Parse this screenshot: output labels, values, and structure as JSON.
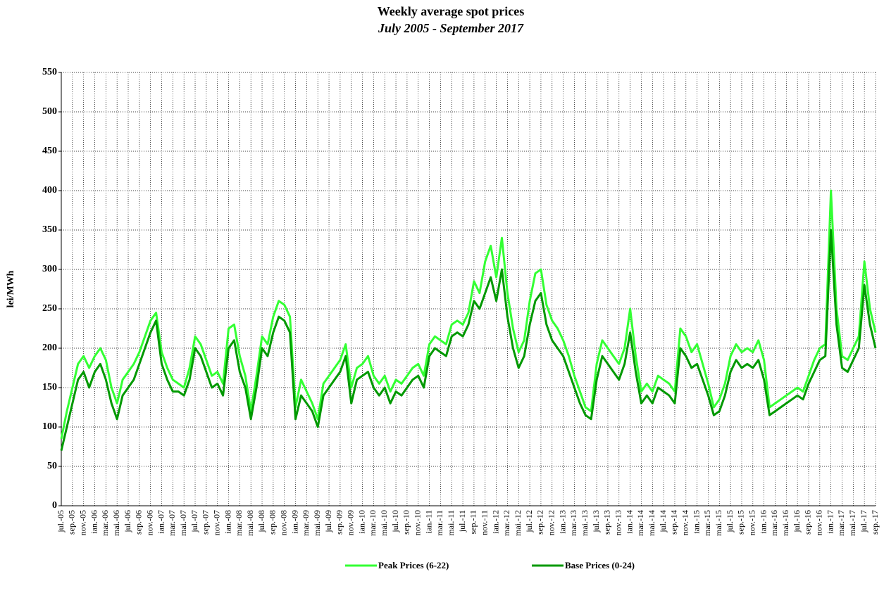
{
  "chart_data": {
    "type": "line",
    "title": "Weekly average spot prices",
    "subtitle": "July 2005 -  September 2017",
    "y_label": "lei/MWh",
    "categories": [
      "jul.-05",
      null,
      "sep.-05",
      null,
      "nov.-05",
      null,
      "ian.-06",
      null,
      "mar.-06",
      null,
      "mai.-06",
      null,
      "jul.-06",
      null,
      "sep.-06",
      null,
      "nov.-06",
      null,
      "ian.-07",
      null,
      "mar.-07",
      null,
      "mai.-07",
      null,
      "jul.-07",
      null,
      "sep.-07",
      null,
      "nov.-07",
      null,
      "ian.-08",
      null,
      "mar.-08",
      null,
      "mai.-08",
      null,
      "jul.-08",
      null,
      "sep.-08",
      null,
      "nov.-08",
      null,
      "ian.-09",
      null,
      "mar.-09",
      null,
      "mai.-09",
      null,
      "jul.-09",
      null,
      "sep.-09",
      null,
      "nov.-09",
      null,
      "ian.-10",
      null,
      "mar.-10",
      null,
      "mai.-10",
      null,
      "jul.-10",
      null,
      "sep.-10",
      null,
      "nov.-10",
      null,
      "ian.-11",
      null,
      "mar.-11",
      null,
      "mai.-11",
      null,
      "jul.-11",
      null,
      "sep.-11",
      null,
      "nov.-11",
      null,
      "ian.-12",
      null,
      "mar.-12",
      null,
      "mai.-12",
      null,
      "jul.-12",
      null,
      "sep.-12",
      null,
      "nov.-12",
      null,
      "ian.-13",
      null,
      "mar.-13",
      null,
      "mai.-13",
      null,
      "jul.-13",
      null,
      "sep.-13",
      null,
      "nov.-13",
      null,
      "ian.-14",
      null,
      "mar.-14",
      null,
      "mai.-14",
      null,
      "jul.-14",
      null,
      "sep.-14",
      null,
      "nov.-14",
      null,
      "ian.-15",
      null,
      "mar.-15",
      null,
      "mai.-15",
      null,
      "jul.-15",
      null,
      "sep.-15",
      null,
      "nov.-15",
      null,
      "ian.-16",
      null,
      "mar.-16",
      null,
      "mai.-16",
      null,
      "jul.-16",
      null,
      "sep.-16",
      null,
      "nov.-16",
      null,
      "ian.-17",
      null,
      "mar.-17",
      null,
      "mai.-17",
      null,
      "jul.-17",
      null,
      "sep.-17"
    ],
    "series": [
      {
        "name": "Peak Prices (6-22)",
        "color": "#33ff33",
        "values": [
          85,
          120,
          150,
          180,
          190,
          175,
          190,
          200,
          185,
          150,
          130,
          160,
          170,
          180,
          195,
          215,
          235,
          245,
          195,
          175,
          160,
          155,
          150,
          175,
          215,
          205,
          185,
          165,
          170,
          155,
          225,
          230,
          190,
          165,
          120,
          165,
          215,
          205,
          240,
          260,
          255,
          240,
          125,
          160,
          145,
          130,
          110,
          155,
          165,
          175,
          185,
          205,
          150,
          175,
          180,
          190,
          165,
          155,
          165,
          145,
          160,
          155,
          165,
          175,
          180,
          165,
          205,
          215,
          210,
          205,
          230,
          235,
          230,
          245,
          285,
          270,
          310,
          330,
          290,
          340,
          270,
          225,
          195,
          210,
          260,
          295,
          300,
          255,
          235,
          225,
          210,
          190,
          165,
          145,
          125,
          120,
          180,
          210,
          200,
          190,
          180,
          200,
          250,
          190,
          145,
          155,
          145,
          165,
          160,
          155,
          145,
          225,
          215,
          195,
          205,
          180,
          155,
          125,
          135,
          155,
          190,
          205,
          195,
          200,
          195,
          210,
          185,
          125,
          130,
          135,
          140,
          145,
          150,
          145,
          165,
          185,
          200,
          205,
          400,
          250,
          190,
          185,
          200,
          215,
          310,
          250,
          220
        ]
      },
      {
        "name": "Base Prices (0-24)",
        "color": "#009900",
        "values": [
          70,
          100,
          130,
          160,
          170,
          150,
          170,
          180,
          160,
          130,
          110,
          140,
          150,
          160,
          180,
          200,
          220,
          235,
          180,
          160,
          145,
          145,
          140,
          160,
          200,
          190,
          170,
          150,
          155,
          140,
          200,
          210,
          170,
          150,
          110,
          150,
          200,
          190,
          220,
          240,
          235,
          220,
          110,
          140,
          130,
          120,
          100,
          140,
          150,
          160,
          170,
          190,
          130,
          160,
          165,
          170,
          150,
          140,
          150,
          130,
          145,
          140,
          150,
          160,
          165,
          150,
          190,
          200,
          195,
          190,
          215,
          220,
          215,
          230,
          260,
          250,
          270,
          290,
          260,
          300,
          240,
          200,
          175,
          190,
          230,
          260,
          270,
          230,
          210,
          200,
          190,
          170,
          150,
          130,
          115,
          110,
          160,
          190,
          180,
          170,
          160,
          180,
          220,
          170,
          130,
          140,
          130,
          150,
          145,
          140,
          130,
          200,
          190,
          175,
          180,
          160,
          140,
          115,
          120,
          140,
          170,
          185,
          175,
          180,
          175,
          185,
          160,
          115,
          120,
          125,
          130,
          135,
          140,
          135,
          155,
          170,
          185,
          190,
          350,
          230,
          175,
          170,
          185,
          200,
          280,
          230,
          200
        ]
      }
    ],
    "ylim": [
      0,
      550
    ],
    "yticks": [
      0,
      50,
      100,
      150,
      200,
      250,
      300,
      350,
      400,
      450,
      500,
      550
    ],
    "grid": true
  }
}
